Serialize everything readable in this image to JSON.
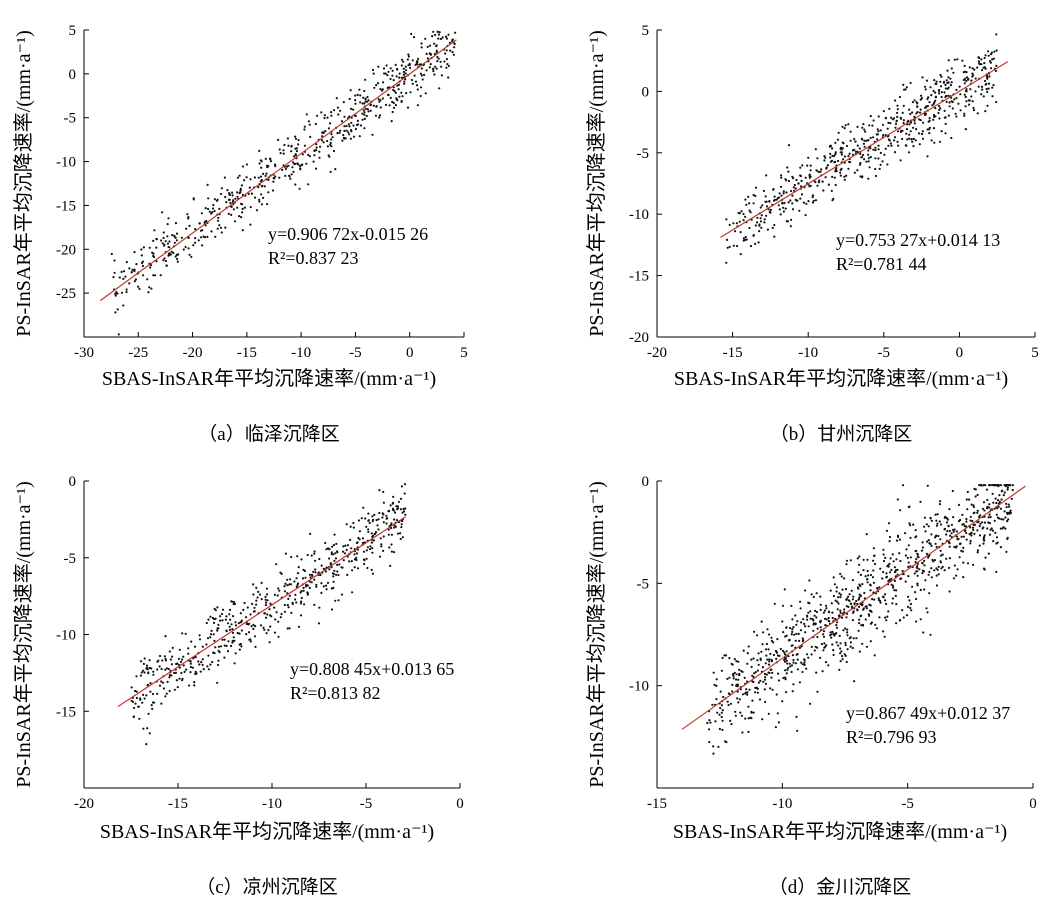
{
  "chart_data": [
    {
      "type": "scatter",
      "caption": "（a）临泽沉降区",
      "xlabel": "SBAS-InSAR年平均沉降速率/(mm·a⁻¹)",
      "ylabel": "PS-InSAR年平均沉降速率/(mm·a⁻¹)",
      "xlim": [
        -30,
        5
      ],
      "ylim": [
        -30,
        5
      ],
      "xticks": [
        -30,
        -25,
        -20,
        -15,
        -10,
        -5,
        0,
        5
      ],
      "yticks": [
        -25,
        -20,
        -15,
        -10,
        -5,
        0,
        5
      ],
      "equation": "y=0.906 72x-0.015 26",
      "r2": "R²=0.837 23",
      "fit": {
        "slope": 0.90672,
        "intercept": -0.01526,
        "x_range": [
          -28.5,
          4.3
        ]
      },
      "points": {
        "count": 650,
        "x_range": [
          -27.5,
          4.2
        ],
        "noise": 1.6
      },
      "marker_color": "#111111",
      "line_color": "#c0392b"
    },
    {
      "type": "scatter",
      "caption": "（b）甘州沉降区",
      "xlabel": "SBAS-InSAR年平均沉降速率/(mm·a⁻¹)",
      "ylabel": "PS-InSAR年平均沉降速率/(mm·a⁻¹)",
      "xlim": [
        -20,
        5
      ],
      "ylim": [
        -20,
        5
      ],
      "xticks": [
        -20,
        -15,
        -10,
        -5,
        0,
        5
      ],
      "yticks": [
        -20,
        -15,
        -10,
        -5,
        0,
        5
      ],
      "equation": "y=0.753 27x+0.014 13",
      "r2": "R²=0.781 44",
      "fit": {
        "slope": 0.75327,
        "intercept": 0.01413,
        "x_range": [
          -15.8,
          3.2
        ]
      },
      "points": {
        "count": 650,
        "x_range": [
          -15.5,
          2.5
        ],
        "noise": 1.3
      },
      "marker_color": "#111111",
      "line_color": "#c0392b"
    },
    {
      "type": "scatter",
      "caption": "（c）凉州沉降区",
      "xlabel": "SBAS-InSAR年平均沉降速率/(mm·a⁻¹)",
      "ylabel": "PS-InSAR年平均沉降速率/(mm·a⁻¹)",
      "xlim": [
        -20,
        0
      ],
      "ylim": [
        -20,
        0
      ],
      "xticks": [
        -20,
        -15,
        -10,
        -5,
        0
      ],
      "yticks": [
        -15,
        -10,
        -5,
        0
      ],
      "equation": "y=0.808 45x+0.013 65",
      "r2": "R²=0.813 82",
      "fit": {
        "slope": 0.80845,
        "intercept": 0.01365,
        "x_range": [
          -18.2,
          -2.9
        ]
      },
      "points": {
        "count": 600,
        "x_range": [
          -17.5,
          -2.9
        ],
        "noise": 1.1
      },
      "marker_color": "#111111",
      "line_color": "#c0392b"
    },
    {
      "type": "scatter",
      "caption": "（d）金川沉降区",
      "xlabel": "SBAS-InSAR年平均沉降速率/(mm·a⁻¹)",
      "ylabel": "PS-InSAR年平均沉降速率/(mm·a⁻¹)",
      "xlim": [
        -15,
        0
      ],
      "ylim": [
        -15,
        0
      ],
      "xticks": [
        -15,
        -10,
        -5,
        0
      ],
      "yticks": [
        -10,
        -5,
        0
      ],
      "equation": "y=0.867 49x+0.012 37",
      "r2": "R²=0.796 93",
      "fit": {
        "slope": 0.86749,
        "intercept": 0.01237,
        "x_range": [
          -14.0,
          -0.3
        ]
      },
      "points": {
        "count": 1000,
        "x_range": [
          -13.0,
          -0.8
        ],
        "noise": 1.2
      },
      "marker_color": "#111111",
      "line_color": "#c0392b"
    }
  ]
}
